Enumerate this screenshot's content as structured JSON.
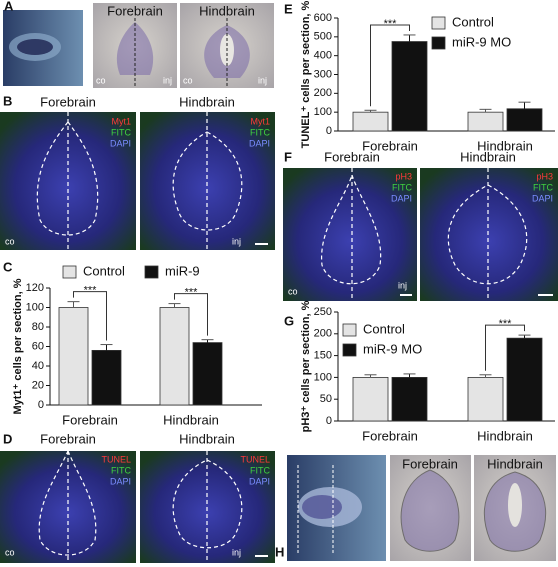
{
  "panel_a": {
    "label": "A",
    "forebrain": {
      "title": "Forebrain",
      "co": "co",
      "inj": "inj"
    },
    "hindbrain": {
      "title": "Hindbrain",
      "co": "co",
      "inj": "inj"
    }
  },
  "panel_b": {
    "label": "B",
    "forebrain": {
      "title": "Forebrain",
      "channels": [
        "Myt1",
        "FITC",
        "DAPI"
      ],
      "co": "co"
    },
    "hindbrain": {
      "title": "Hindbrain",
      "channels": [
        "Myt1",
        "FITC",
        "DAPI"
      ],
      "inj": "inj"
    }
  },
  "panel_d": {
    "label": "D",
    "forebrain": {
      "title": "Forebrain",
      "channels": [
        "TUNEL",
        "FITC",
        "DAPI"
      ],
      "co": "co"
    },
    "hindbrain": {
      "title": "Hindbrain",
      "channels": [
        "TUNEL",
        "FITC",
        "DAPI"
      ],
      "inj": "inj"
    }
  },
  "panel_f": {
    "label": "F",
    "forebrain": {
      "title": "Forebrain",
      "channels": [
        "pH3",
        "FITC",
        "DAPI"
      ],
      "co": "co",
      "inj": "inj"
    },
    "hindbrain": {
      "title": "Hindbrain",
      "channels": [
        "pH3",
        "FITC",
        "DAPI"
      ]
    }
  },
  "panel_h": {
    "label": "H",
    "forebrain": {
      "title": "Forebrain"
    },
    "hindbrain": {
      "title": "Hindbrain"
    }
  },
  "chart_data": [
    {
      "type": "bar",
      "label": "C",
      "ylabel": "Myt1⁺ cells per section, %",
      "categories": [
        "Forebrain",
        "Hindbrain"
      ],
      "series": [
        {
          "name": "Control",
          "color": "#e4e4e4",
          "values": [
            100,
            100
          ],
          "errors": [
            6,
            4
          ]
        },
        {
          "name": "miR-9",
          "color": "#111111",
          "values": [
            56,
            64
          ],
          "errors": [
            6,
            3
          ]
        }
      ],
      "ylim": [
        0,
        120
      ],
      "yticks": [
        0,
        20,
        40,
        60,
        80,
        100,
        120
      ],
      "annotations": [
        "***",
        "***"
      ]
    },
    {
      "type": "bar",
      "label": "E",
      "ylabel": "TUNEL⁺ cells per section, %",
      "categories": [
        "Forebrain",
        "Hindbrain"
      ],
      "series": [
        {
          "name": "Control",
          "color": "#e4e4e4",
          "values": [
            100,
            100
          ],
          "errors": [
            10,
            15
          ]
        },
        {
          "name": "miR-9 MO",
          "color": "#111111",
          "values": [
            475,
            118
          ],
          "errors": [
            35,
            35
          ]
        }
      ],
      "ylim": [
        0,
        600
      ],
      "yticks": [
        0,
        100,
        200,
        300,
        400,
        500,
        600
      ],
      "annotations": [
        "***"
      ]
    },
    {
      "type": "bar",
      "label": "G",
      "ylabel": "pH3⁺ cells per section, %",
      "categories": [
        "Forebrain",
        "Hindbrain"
      ],
      "series": [
        {
          "name": "Control",
          "color": "#e4e4e4",
          "values": [
            100,
            100
          ],
          "errors": [
            6,
            6
          ]
        },
        {
          "name": "miR-9 MO",
          "color": "#111111",
          "values": [
            100,
            190
          ],
          "errors": [
            8,
            7
          ]
        }
      ],
      "ylim": [
        0,
        250
      ],
      "yticks": [
        0,
        50,
        100,
        150,
        200,
        250
      ],
      "annotations": [
        "***"
      ]
    }
  ]
}
